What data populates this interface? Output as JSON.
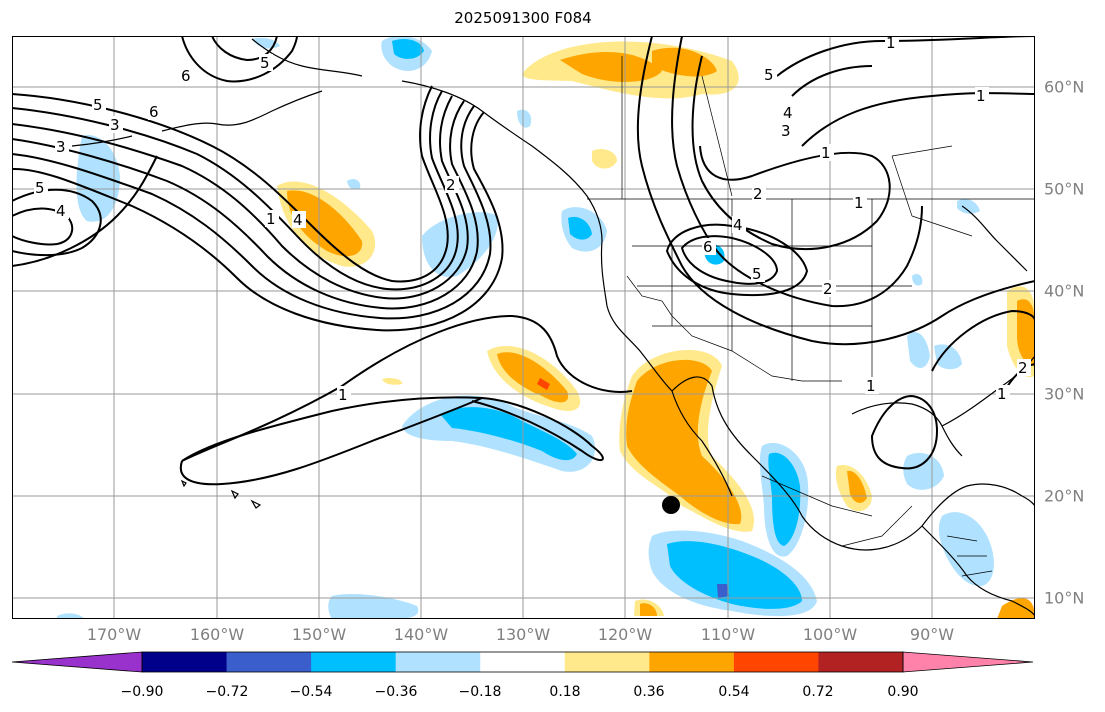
{
  "title": "2025091300 F084",
  "lon_labels": [
    "170°W",
    "160°W",
    "150°W",
    "140°W",
    "130°W",
    "120°W",
    "110°W",
    "100°W",
    "90°W"
  ],
  "lat_labels": [
    "60°N",
    "50°N",
    "40°N",
    "30°N",
    "20°N",
    "10°N"
  ],
  "colorbar": {
    "ticks": [
      "−0.90",
      "−0.72",
      "−0.54",
      "−0.36",
      "−0.18",
      "0.18",
      "0.36",
      "0.54",
      "0.72",
      "0.90"
    ],
    "colors": [
      "#9932cc",
      "#00008b",
      "#3a5fcd",
      "#00bfff",
      "#b0e2ff",
      "#ffffff",
      "#ffe98a",
      "#ffa500",
      "#ff4500",
      "#b22222",
      "#ff82ab"
    ],
    "extend": "both"
  },
  "contour_labels": {
    "c1": "1",
    "c2": "2",
    "c3": "3",
    "c4": "4",
    "c5": "5",
    "c6": "6"
  },
  "marker": {
    "lon": -115.8,
    "lat": 19.3,
    "color": "#000000"
  }
}
